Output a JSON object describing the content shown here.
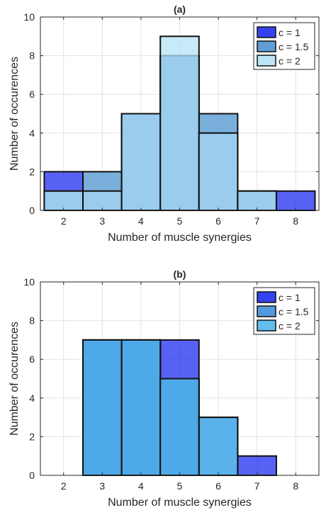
{
  "chart_data": [
    {
      "type": "bar",
      "title": "(a)",
      "xlabel": "Number of muscle synergies",
      "ylabel": "Number of occurences",
      "categories": [
        "2",
        "3",
        "4",
        "5",
        "6",
        "7",
        "8"
      ],
      "x_ticks": [
        "2",
        "3",
        "4",
        "5",
        "6",
        "7",
        "8"
      ],
      "y_ticks": [
        "0",
        "2",
        "4",
        "6",
        "8",
        "10"
      ],
      "ylim": [
        0,
        10
      ],
      "grid": true,
      "legend_position": "top-right",
      "overlay": "overlapping semi-transparent histograms",
      "series": [
        {
          "name": "c = 1",
          "color": "#1f2ef0",
          "values": [
            2,
            1,
            5,
            8,
            4,
            1,
            1
          ]
        },
        {
          "name": "c = 1.5",
          "color": "#4f94cf",
          "values": [
            1,
            2,
            5,
            8,
            5,
            1,
            0
          ]
        },
        {
          "name": "c = 2",
          "color": "#b3e3f6",
          "values": [
            1,
            1,
            5,
            9,
            4,
            1,
            0
          ]
        }
      ]
    },
    {
      "type": "bar",
      "title": "(b)",
      "xlabel": "Number of muscle synergies",
      "ylabel": "Number of occurences",
      "categories": [
        "2",
        "3",
        "4",
        "5",
        "6",
        "7",
        "8"
      ],
      "x_ticks": [
        "2",
        "3",
        "4",
        "5",
        "6",
        "7",
        "8"
      ],
      "y_ticks": [
        "0",
        "2",
        "4",
        "6",
        "8",
        "10"
      ],
      "ylim": [
        0,
        10
      ],
      "grid": true,
      "legend_position": "top-right",
      "overlay": "overlapping semi-transparent histograms",
      "series": [
        {
          "name": "c = 1",
          "color": "#1f2ef0",
          "values": [
            0,
            7,
            7,
            7,
            0,
            1,
            0
          ]
        },
        {
          "name": "c = 1.5",
          "color": "#3f8fd9",
          "values": [
            0,
            7,
            7,
            5,
            3,
            0,
            0
          ]
        },
        {
          "name": "c = 2",
          "color": "#52b6ec",
          "values": [
            0,
            7,
            7,
            5,
            3,
            0,
            0
          ]
        }
      ]
    }
  ]
}
